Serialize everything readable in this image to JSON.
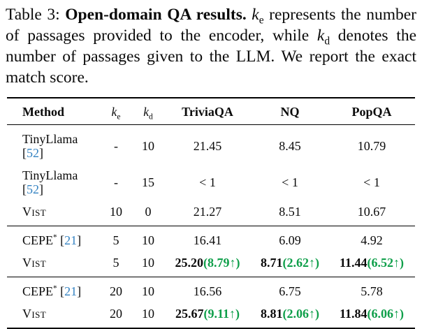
{
  "caption": {
    "segments": [
      {
        "text": "Table 3: ",
        "name": "caption-label"
      },
      {
        "text": "Open-domain QA results.",
        "bold": true,
        "name": "caption-title"
      },
      {
        "text": " ",
        "name": "caption-text"
      },
      {
        "text": "k",
        "italic": true,
        "name": "math-k"
      },
      {
        "text": "e",
        "sub": true,
        "name": "math-sub-e"
      },
      {
        "text": " represents the number of passages provided to the encoder, while ",
        "name": "caption-text"
      },
      {
        "text": "k",
        "italic": true,
        "name": "math-k"
      },
      {
        "text": "d",
        "sub": true,
        "name": "math-sub-d"
      },
      {
        "text": " denotes the number of passages given to the LLM. We report the exact match score.",
        "name": "caption-text"
      }
    ]
  },
  "table": {
    "headers": {
      "method": "Method",
      "ke_base": "k",
      "ke_sub": "e",
      "kd_base": "k",
      "kd_sub": "d",
      "triviaqa": "TriviaQA",
      "nq": "NQ",
      "popqa": "PopQA"
    },
    "format": {
      "cite_open": " [",
      "cite_close": "]",
      "delta_open": "(",
      "delta_close": ")",
      "arrow": "↑"
    },
    "colors": {
      "citation_blue": "#3583c2",
      "delta_green": "#0f9f4a"
    },
    "groups": [
      {
        "rows": [
          {
            "method": {
              "name": "TinyLlama",
              "cite": "52"
            },
            "ke": "-",
            "kd": "10",
            "triviaqa": {
              "value": "21.45"
            },
            "nq": {
              "value": "8.45"
            },
            "popqa": {
              "value": "10.79"
            }
          },
          {
            "method": {
              "name": "TinyLlama",
              "cite": "52"
            },
            "ke": "-",
            "kd": "15",
            "triviaqa": {
              "value": "< 1"
            },
            "nq": {
              "value": "< 1"
            },
            "popqa": {
              "value": "< 1"
            }
          },
          {
            "method": {
              "name": "Vist",
              "smallcaps": true
            },
            "ke": "10",
            "kd": "0",
            "triviaqa": {
              "value": "21.27"
            },
            "nq": {
              "value": "8.51"
            },
            "popqa": {
              "value": "10.67"
            }
          }
        ]
      },
      {
        "rows": [
          {
            "method": {
              "name": "CEPE",
              "sup": "*",
              "cite": "21"
            },
            "ke": "5",
            "kd": "10",
            "triviaqa": {
              "value": "16.41"
            },
            "nq": {
              "value": "6.09"
            },
            "popqa": {
              "value": "4.92"
            }
          },
          {
            "method": {
              "name": "Vist",
              "smallcaps": true
            },
            "ke": "5",
            "kd": "10",
            "triviaqa": {
              "value": "25.20",
              "delta": "8.79",
              "bold": true
            },
            "nq": {
              "value": "8.71",
              "delta": "2.62",
              "bold": true
            },
            "popqa": {
              "value": "11.44",
              "delta": "6.52",
              "bold": true
            }
          }
        ]
      },
      {
        "rows": [
          {
            "method": {
              "name": "CEPE",
              "sup": "*",
              "cite": "21"
            },
            "ke": "20",
            "kd": "10",
            "triviaqa": {
              "value": "16.56"
            },
            "nq": {
              "value": "6.75"
            },
            "popqa": {
              "value": "5.78"
            }
          },
          {
            "method": {
              "name": "Vist",
              "smallcaps": true
            },
            "ke": "20",
            "kd": "10",
            "triviaqa": {
              "value": "25.67",
              "delta": "9.11",
              "bold": true
            },
            "nq": {
              "value": "8.81",
              "delta": "2.06",
              "bold": true
            },
            "popqa": {
              "value": "11.84",
              "delta": "6.06",
              "bold": true
            }
          }
        ]
      }
    ]
  }
}
